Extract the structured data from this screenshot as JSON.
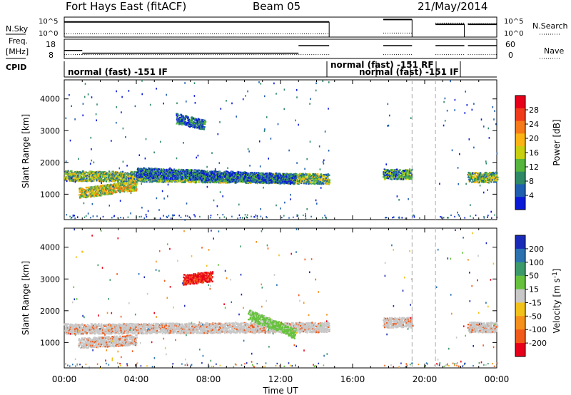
{
  "header": {
    "station": "Fort Hays East (fitACF)",
    "beam": "Beam 05",
    "date": "21/May/2014"
  },
  "side_labels": {
    "nsky": "N.Sky",
    "nsearch": "N.Search",
    "freq_line1": "Freq.",
    "freq_line2": "[MHz]",
    "nave": "Nave",
    "cpid": "CPID"
  },
  "noise_panel": {
    "left_ticks": [
      "10^5",
      "10^0"
    ],
    "right_ticks": [
      "10^5",
      "10^0"
    ],
    "segments": [
      {
        "start_h": 0.0,
        "end_h": 14.7,
        "sky": 3.8,
        "search": 0.8
      },
      {
        "start_h": 17.7,
        "end_h": 19.3,
        "sky": 4.4,
        "search": 1.0
      },
      {
        "start_h": 20.6,
        "end_h": 22.2,
        "sky": 3.2,
        "search": 3.5
      },
      {
        "start_h": 22.4,
        "end_h": 24.0,
        "sky": 3.2,
        "search": 3.4
      }
    ]
  },
  "freq_panel": {
    "left_ticks": [
      "18",
      "8"
    ],
    "right_ticks": [
      "60",
      "0"
    ],
    "segments": [
      {
        "start_h": 0.0,
        "end_h": 1.0,
        "freq": 12.0,
        "nave": 12
      },
      {
        "start_h": 1.0,
        "end_h": 13.0,
        "freq": 10.3,
        "nave": 12
      },
      {
        "start_h": 13.0,
        "end_h": 14.7,
        "freq": 15.0,
        "nave": 12
      },
      {
        "start_h": 17.7,
        "end_h": 19.3,
        "freq": 15.0,
        "nave": 12
      },
      {
        "start_h": 20.6,
        "end_h": 22.2,
        "freq": 15.0,
        "nave": 12
      },
      {
        "start_h": 22.4,
        "end_h": 24.0,
        "freq": 15.0,
        "nave": 12
      }
    ]
  },
  "cpid_labels": {
    "label1": "normal (fast) -151 IF",
    "label2": "normal (fast) -151  RF",
    "label3": "normal (fast) -151 IF"
  },
  "chart_data": [
    {
      "type": "heatmap",
      "title": "",
      "xlabel": "",
      "ylabel": "Slant Range [km]",
      "xlim_hours": [
        0,
        24
      ],
      "ylim": [
        200,
        4600
      ],
      "yticks": [
        "1000",
        "2000",
        "3000",
        "4000"
      ],
      "colorbar": {
        "label": "Power [dB]",
        "ticks": [
          "28",
          "24",
          "20",
          "16",
          "12",
          "8",
          "4"
        ],
        "levels": [
          "#e8001a",
          "#f03a1a",
          "#f77a18",
          "#fbb414",
          "#c8d00e",
          "#55b53c",
          "#2e8a66",
          "#1f5fb0",
          "#0a1ad8"
        ]
      },
      "echo_regions": [
        {
          "name": "main band",
          "start_h": 0.0,
          "end_h": 14.7,
          "range_start_km": 1600,
          "range_end_km": 1500,
          "peak_value": 20
        },
        {
          "name": "lower band",
          "start_h": 0.8,
          "end_h": 4.0,
          "range_start_km": 1050,
          "range_end_km": 1300,
          "peak_value": 24
        },
        {
          "name": "upper arc",
          "start_h": 4.0,
          "end_h": 12.8,
          "range_start_km": 1700,
          "range_end_km": 1500,
          "peak_value": 12
        },
        {
          "name": "high-range patch",
          "start_h": 6.2,
          "end_h": 7.8,
          "range_start_km": 3400,
          "range_end_km": 3200,
          "peak_value": 14
        },
        {
          "name": "late band",
          "start_h": 17.7,
          "end_h": 19.3,
          "range_start_km": 1650,
          "range_end_km": 1650,
          "peak_value": 16
        },
        {
          "name": "end band",
          "start_h": 22.4,
          "end_h": 24.0,
          "range_start_km": 1550,
          "range_end_km": 1550,
          "peak_value": 20
        }
      ]
    },
    {
      "type": "heatmap",
      "title": "",
      "xlabel": "Time UT",
      "ylabel": "Slant Range [km]",
      "xlim_hours": [
        0,
        24
      ],
      "ylim": [
        200,
        4600
      ],
      "yticks": [
        "1000",
        "2000",
        "3000",
        "4000"
      ],
      "xticks": [
        "00:00",
        "04:00",
        "08:00",
        "12:00",
        "16:00",
        "20:00",
        "00:00"
      ],
      "colorbar": {
        "label": "Velocity [m s^-1]",
        "ticks": [
          "200",
          "100",
          "50",
          "15",
          "-15",
          "-50",
          "-100",
          "-200"
        ],
        "levels": [
          "#1a2ab8",
          "#2a72b0",
          "#3c9a6a",
          "#66c23c",
          "#c8c8c8",
          "#f2c21a",
          "#f5901a",
          "#f25a1a",
          "#e8001a"
        ]
      },
      "echo_regions": [
        {
          "name": "ground scatter band",
          "start_h": 0.0,
          "end_h": 14.7,
          "range_start_km": 1450,
          "range_end_km": 1500,
          "value": 0
        },
        {
          "name": "lower ground scatter",
          "start_h": 0.8,
          "end_h": 4.0,
          "range_start_km": 1000,
          "range_end_km": 1100,
          "value": 0
        },
        {
          "name": "receding arc",
          "start_h": 10.2,
          "end_h": 12.8,
          "range_start_km": 1900,
          "range_end_km": 1300,
          "value": 40
        },
        {
          "name": "strong negative patch",
          "start_h": 6.6,
          "end_h": 8.2,
          "range_start_km": 3000,
          "range_end_km": 3100,
          "value": -200
        },
        {
          "name": "late band",
          "start_h": 17.7,
          "end_h": 19.3,
          "range_start_km": 1650,
          "range_end_km": 1650,
          "value": 0
        },
        {
          "name": "end band",
          "start_h": 22.4,
          "end_h": 24.0,
          "range_start_km": 1500,
          "range_end_km": 1500,
          "value": 0
        }
      ]
    }
  ]
}
